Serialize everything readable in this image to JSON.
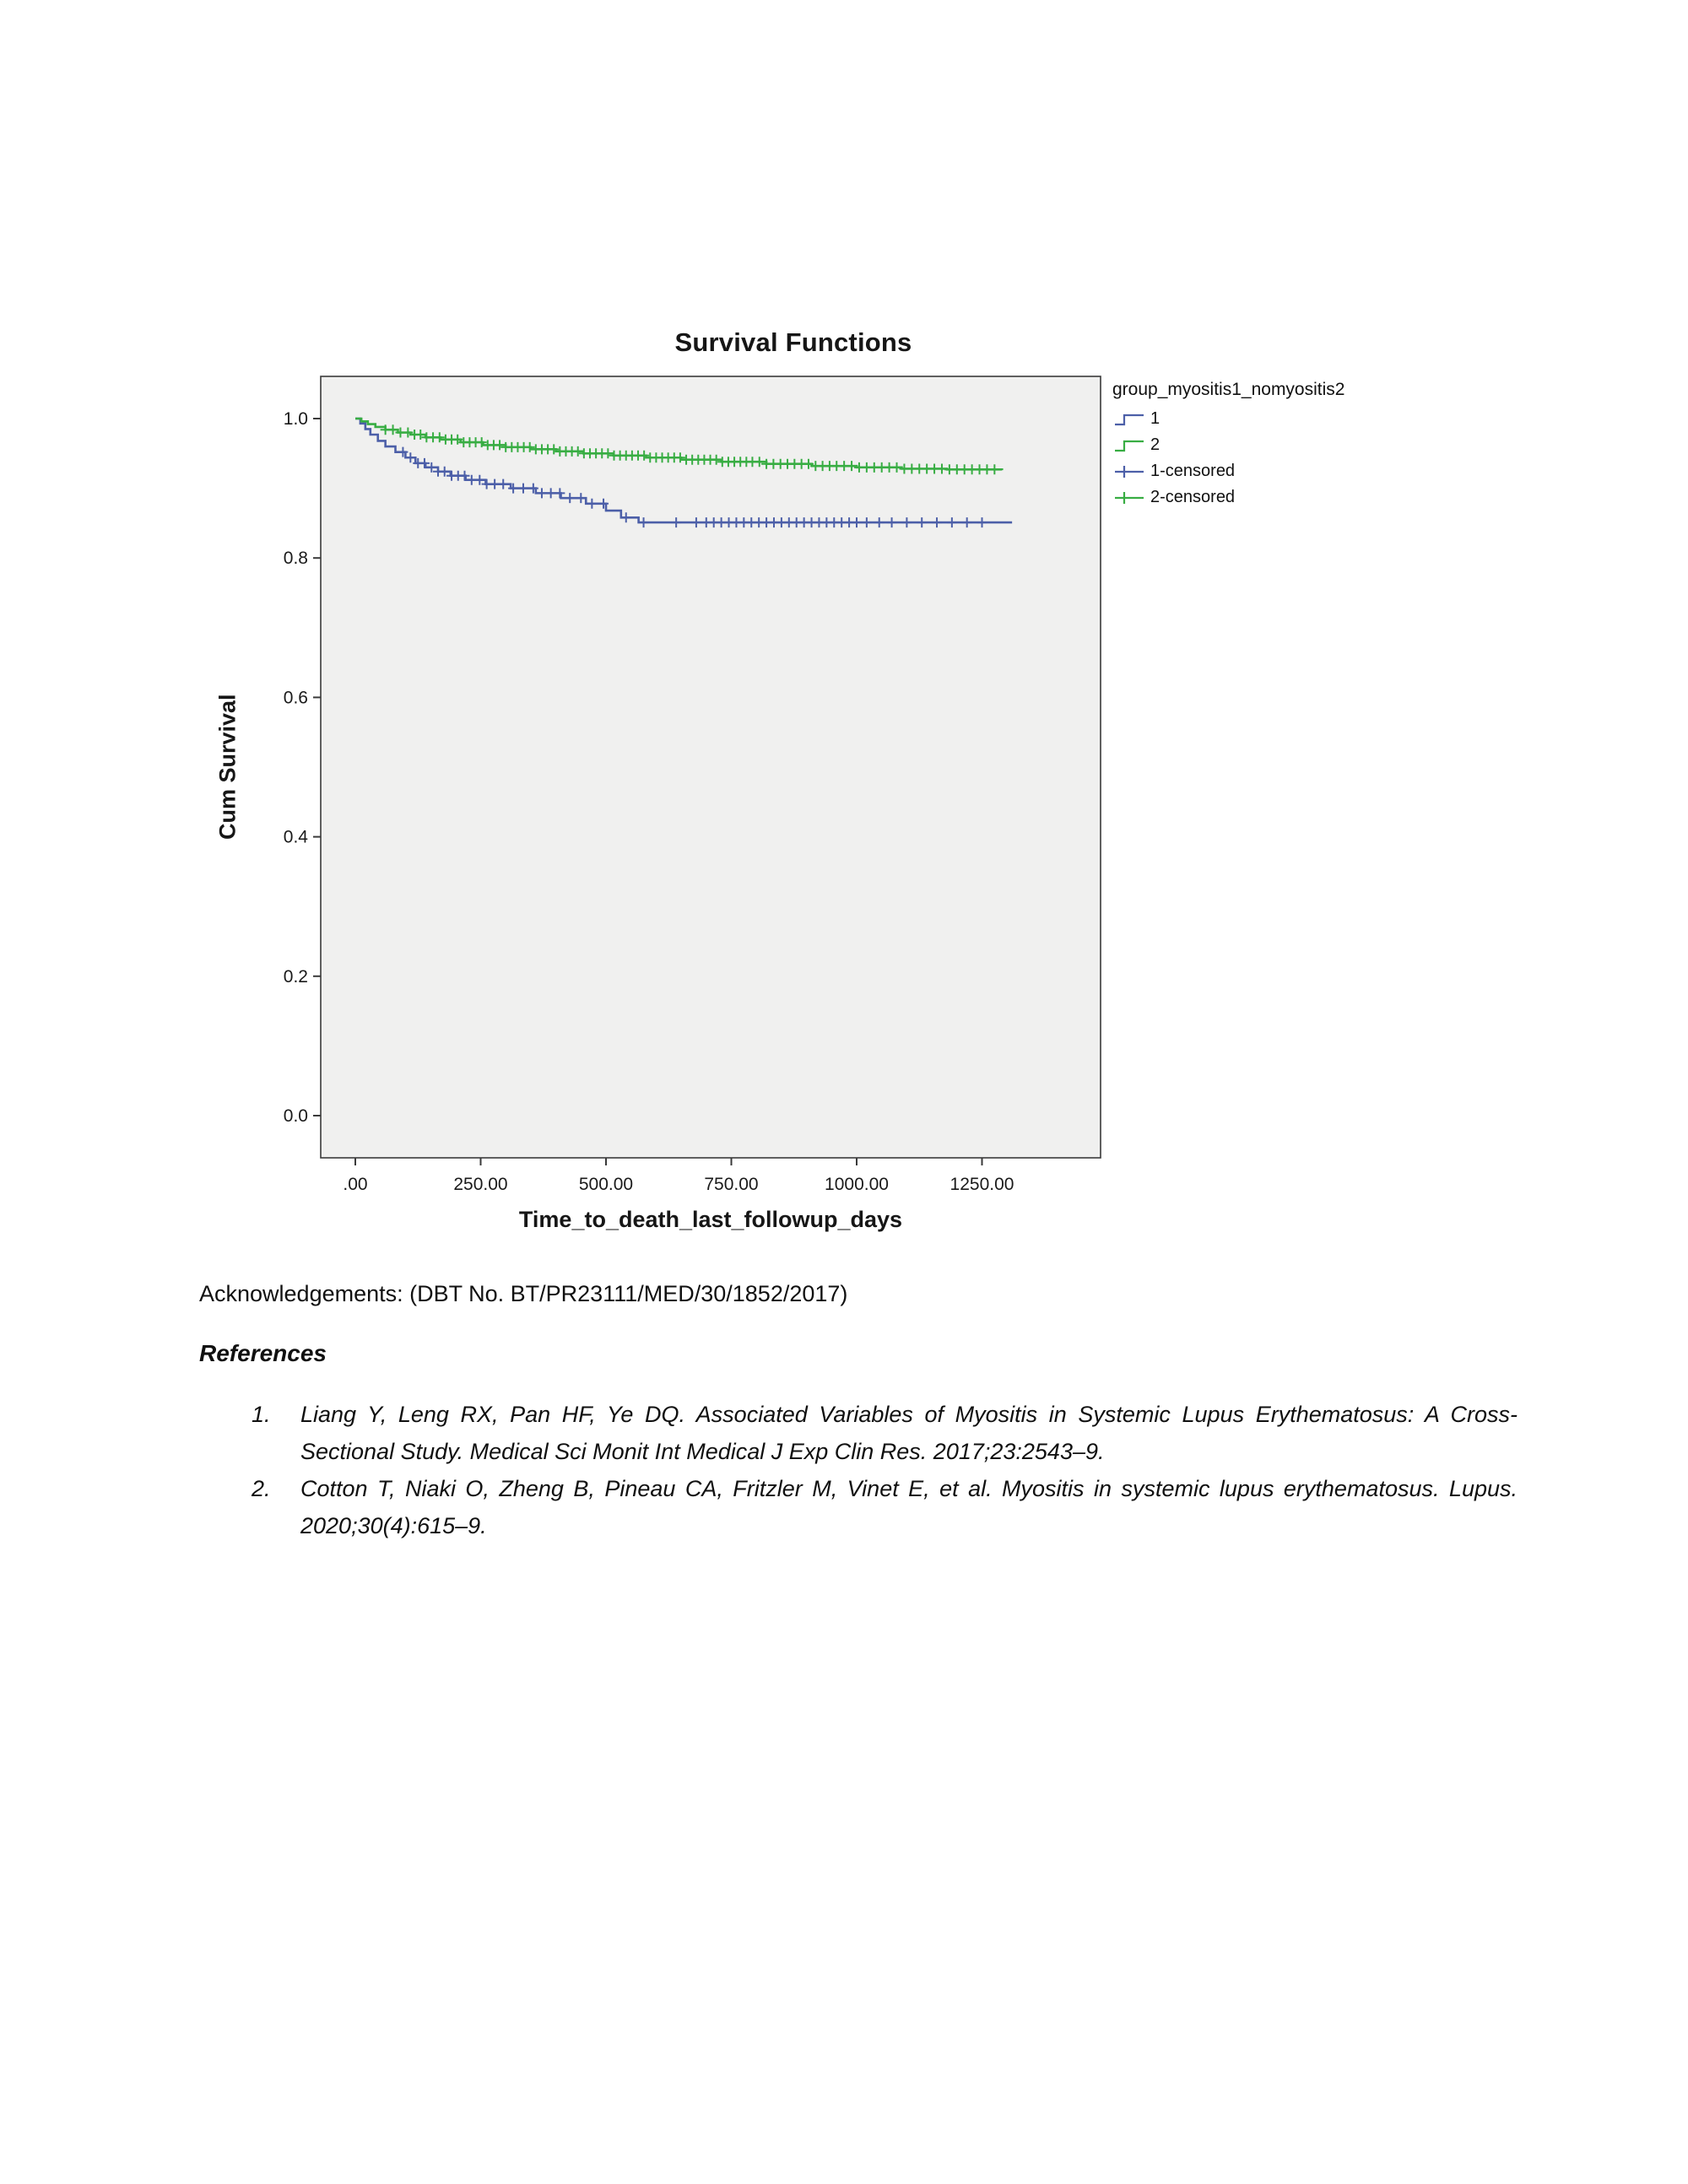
{
  "chart_data": {
    "type": "line",
    "subtype": "kaplan-meier-step",
    "title": "Survival Functions",
    "xlabel": "Time_to_death_last_followup_days",
    "ylabel": "Cum Survival",
    "xlim": [
      -70,
      1487
    ],
    "ylim": [
      -0.06,
      1.06
    ],
    "grid": false,
    "plot_bg": "#f0f0ef",
    "frame_color": "#3a3a3a",
    "tick_color": "#1a1a1a",
    "x_ticks": {
      "values": [
        0,
        250,
        500,
        750,
        1000,
        1250
      ],
      "labels": [
        ".00",
        "250.00",
        "500.00",
        "750.00",
        "1000.00",
        "1250.00"
      ]
    },
    "y_ticks": {
      "values": [
        0.0,
        0.2,
        0.4,
        0.6,
        0.8,
        1.0
      ],
      "labels": [
        "0.0",
        "0.2",
        "0.4",
        "0.6",
        "0.8",
        "1.0"
      ]
    },
    "legend": {
      "title": "group_myositis1_nomyositis2",
      "position": "right",
      "entries": [
        {
          "label": "1",
          "marker": "step",
          "color": "#4c5fa8"
        },
        {
          "label": "2",
          "marker": "step",
          "color": "#38ad43"
        },
        {
          "label": "1-censored",
          "marker": "plus",
          "color": "#4c5fa8"
        },
        {
          "label": "2-censored",
          "marker": "plus",
          "color": "#38ad43"
        }
      ]
    },
    "series": [
      {
        "name": "1",
        "color": "#4c5fa8",
        "points": [
          [
            0,
            1.0
          ],
          [
            10,
            0.993
          ],
          [
            20,
            0.985
          ],
          [
            30,
            0.977
          ],
          [
            45,
            0.968
          ],
          [
            60,
            0.96
          ],
          [
            80,
            0.952
          ],
          [
            100,
            0.944
          ],
          [
            120,
            0.936
          ],
          [
            140,
            0.93
          ],
          [
            165,
            0.924
          ],
          [
            190,
            0.918
          ],
          [
            220,
            0.912
          ],
          [
            260,
            0.906
          ],
          [
            310,
            0.9
          ],
          [
            360,
            0.893
          ],
          [
            410,
            0.886
          ],
          [
            460,
            0.878
          ],
          [
            500,
            0.868
          ],
          [
            530,
            0.858
          ],
          [
            565,
            0.851
          ],
          [
            1310,
            0.851
          ]
        ],
        "censored": [
          95,
          110,
          125,
          138,
          152,
          165,
          178,
          192,
          205,
          218,
          232,
          248,
          262,
          278,
          295,
          315,
          335,
          355,
          372,
          390,
          408,
          428,
          450,
          472,
          495,
          540,
          575,
          640,
          680,
          700,
          715,
          730,
          745,
          760,
          775,
          790,
          805,
          820,
          835,
          850,
          865,
          880,
          895,
          910,
          925,
          940,
          955,
          970,
          985,
          1000,
          1020,
          1045,
          1070,
          1100,
          1130,
          1160,
          1190,
          1220,
          1250
        ]
      },
      {
        "name": "2",
        "color": "#38ad43",
        "points": [
          [
            0,
            1.0
          ],
          [
            12,
            0.996
          ],
          [
            25,
            0.992
          ],
          [
            40,
            0.988
          ],
          [
            60,
            0.984
          ],
          [
            85,
            0.98
          ],
          [
            110,
            0.977
          ],
          [
            140,
            0.973
          ],
          [
            170,
            0.97
          ],
          [
            210,
            0.966
          ],
          [
            255,
            0.962
          ],
          [
            300,
            0.959
          ],
          [
            350,
            0.956
          ],
          [
            400,
            0.953
          ],
          [
            455,
            0.95
          ],
          [
            515,
            0.947
          ],
          [
            580,
            0.944
          ],
          [
            650,
            0.941
          ],
          [
            730,
            0.938
          ],
          [
            820,
            0.935
          ],
          [
            910,
            0.932
          ],
          [
            1000,
            0.93
          ],
          [
            1090,
            0.928
          ],
          [
            1180,
            0.927
          ],
          [
            1290,
            0.926
          ]
        ],
        "censored": [
          60,
          75,
          90,
          105,
          118,
          130,
          142,
          155,
          168,
          180,
          192,
          204,
          216,
          228,
          240,
          252,
          264,
          276,
          288,
          300,
          312,
          324,
          336,
          348,
          360,
          372,
          384,
          396,
          408,
          420,
          432,
          444,
          456,
          468,
          480,
          492,
          504,
          516,
          528,
          540,
          552,
          564,
          576,
          588,
          600,
          612,
          624,
          636,
          648,
          660,
          672,
          684,
          696,
          708,
          720,
          732,
          744,
          756,
          768,
          780,
          792,
          806,
          820,
          834,
          848,
          862,
          876,
          890,
          904,
          918,
          932,
          946,
          960,
          975,
          990,
          1005,
          1020,
          1035,
          1050,
          1065,
          1080,
          1095,
          1110,
          1125,
          1140,
          1155,
          1170,
          1185,
          1200,
          1215,
          1230,
          1245,
          1260,
          1275
        ]
      }
    ]
  },
  "text": {
    "acknowledgements": "Acknowledgements: (DBT No. BT/PR23111/MED/30/1852/2017)",
    "references_heading": "References",
    "references": [
      {
        "number": "1.",
        "citation": "Liang Y, Leng RX, Pan HF, Ye DQ. Associated Variables of Myositis in Systemic Lupus Erythematosus: A Cross-Sectional Study. Medical Sci Monit Int Medical J Exp Clin Res. 2017;23:2543–9."
      },
      {
        "number": "2.",
        "citation": "Cotton T, Niaki O, Zheng B, Pineau CA, Fritzler M, Vinet E, et al. Myositis in systemic lupus erythematosus. Lupus. 2020;30(4):615–9."
      }
    ]
  }
}
